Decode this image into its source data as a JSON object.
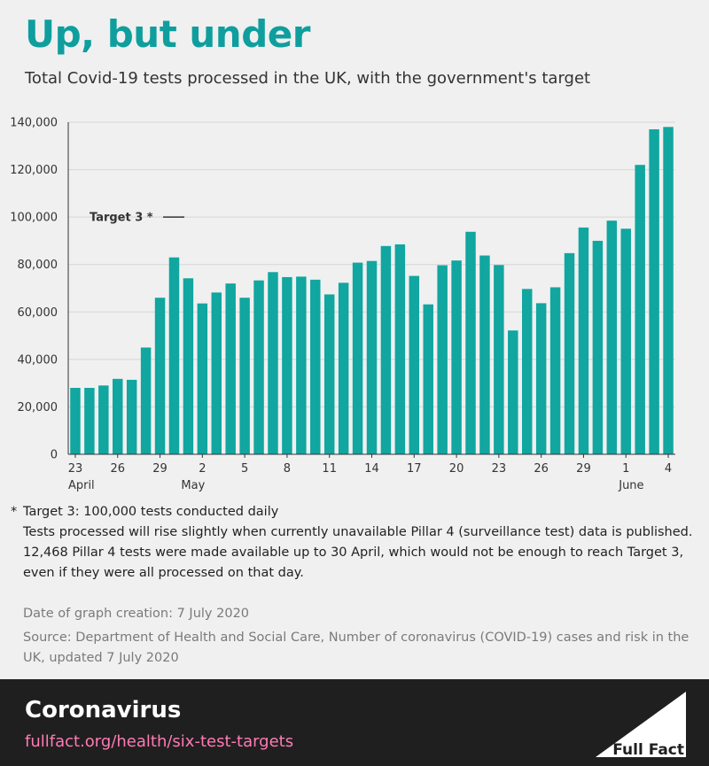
{
  "header": {
    "title": "Up, but under",
    "subtitle": "Total Covid-19 tests processed in the UK, with the government's target"
  },
  "colors": {
    "accent": "#0f9e9e",
    "bar": "#11a6a0",
    "footer_bg": "#1f1f1f",
    "link": "#ff7bb5"
  },
  "chart_data": {
    "type": "bar",
    "title": "Up, but under",
    "subtitle": "Total Covid-19 tests processed in the UK, with the government's target",
    "xlabel": "",
    "ylabel": "",
    "ylim": [
      0,
      140000
    ],
    "yticks": [
      0,
      20000,
      40000,
      60000,
      80000,
      100000,
      120000,
      140000
    ],
    "ytick_labels": [
      "0",
      "20,000",
      "40,000",
      "60,000",
      "80,000",
      "100,000",
      "120,000",
      "140,000"
    ],
    "grid": true,
    "categories": [
      "23 Apr",
      "24 Apr",
      "25 Apr",
      "26 Apr",
      "27 Apr",
      "28 Apr",
      "29 Apr",
      "30 Apr",
      "1 May",
      "2 May",
      "3 May",
      "4 May",
      "5 May",
      "6 May",
      "7 May",
      "8 May",
      "9 May",
      "10 May",
      "11 May",
      "12 May",
      "13 May",
      "14 May",
      "15 May",
      "16 May",
      "17 May",
      "18 May",
      "19 May",
      "20 May",
      "21 May",
      "22 May",
      "23 May",
      "24 May",
      "25 May",
      "26 May",
      "27 May",
      "28 May",
      "29 May",
      "30 May",
      "31 May",
      "1 Jun",
      "2 Jun",
      "3 Jun",
      "4 Jun"
    ],
    "values": [
      28000,
      28000,
      29000,
      31800,
      31400,
      45000,
      66000,
      83000,
      74200,
      63600,
      68200,
      72000,
      66000,
      73300,
      76800,
      74700,
      74900,
      73600,
      67400,
      72300,
      80800,
      81500,
      87800,
      88500,
      75200,
      63200,
      79700,
      81700,
      93800,
      83800,
      79800,
      52200,
      69700,
      63700,
      70400,
      84800,
      95600,
      90000,
      98500,
      95100,
      122000,
      137000,
      138000
    ],
    "xtick_labels": [
      {
        "index": 0,
        "label": "23"
      },
      {
        "index": 3,
        "label": "26"
      },
      {
        "index": 6,
        "label": "29"
      },
      {
        "index": 9,
        "label": "2"
      },
      {
        "index": 12,
        "label": "5"
      },
      {
        "index": 15,
        "label": "8"
      },
      {
        "index": 18,
        "label": "11"
      },
      {
        "index": 21,
        "label": "14"
      },
      {
        "index": 24,
        "label": "17"
      },
      {
        "index": 27,
        "label": "20"
      },
      {
        "index": 30,
        "label": "23"
      },
      {
        "index": 33,
        "label": "26"
      },
      {
        "index": 36,
        "label": "29"
      },
      {
        "index": 39,
        "label": "1"
      },
      {
        "index": 42,
        "label": "4"
      }
    ],
    "month_labels": [
      {
        "index": 0,
        "label": "April"
      },
      {
        "index": 8,
        "label": "May"
      },
      {
        "index": 39,
        "label": "June"
      }
    ],
    "target": {
      "value": 100000,
      "label": "Target 3 *"
    }
  },
  "notes": {
    "star": "*",
    "target_note": "Target 3: 100,000 tests conducted daily",
    "explanation": "Tests processed will rise slightly when currently unavailable Pillar 4 (surveillance test) data is published. 12,468 Pillar 4 tests were made available up to 30 April, which would not be enough to reach Target 3, even if they were all processed on that day."
  },
  "meta": {
    "date": "Date of graph creation: 7 July 2020",
    "source": "Source: Department of Health and Social Care, Number of coronavirus (COVID-19) cases and risk in the UK, updated 7 July 2020"
  },
  "footer": {
    "topic": "Coronavirus",
    "link": "fullfact.org/health/six-test-targets",
    "logo_text": "Full Fact"
  }
}
